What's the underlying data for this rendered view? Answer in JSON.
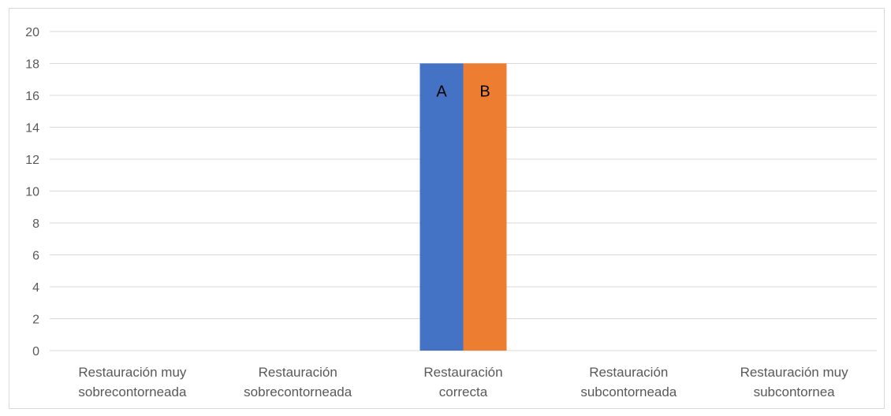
{
  "chart_data": {
    "type": "bar",
    "categories": [
      [
        "Restauración muy",
        "sobrecontorneada"
      ],
      [
        "Restauración",
        "sobrecontorneada"
      ],
      [
        "Restauración",
        "correcta"
      ],
      [
        "Restauración",
        "subcontorneada"
      ],
      [
        "Restauración muy",
        "subcontornea"
      ]
    ],
    "series": [
      {
        "values": [
          0,
          0,
          18,
          0,
          0
        ],
        "label": "A",
        "color": "#4472C4"
      },
      {
        "values": [
          0,
          0,
          18,
          0,
          0
        ],
        "label": "B",
        "color": "#ED7D31"
      }
    ],
    "title": "",
    "xlabel": "",
    "ylabel": "",
    "ylim": [
      0,
      20
    ],
    "yticks": [
      "0",
      "2",
      "4",
      "6",
      "8",
      "10",
      "12",
      "14",
      "16",
      "18",
      "20"
    ],
    "grid": true,
    "grid_color": "#d9d9d9"
  }
}
